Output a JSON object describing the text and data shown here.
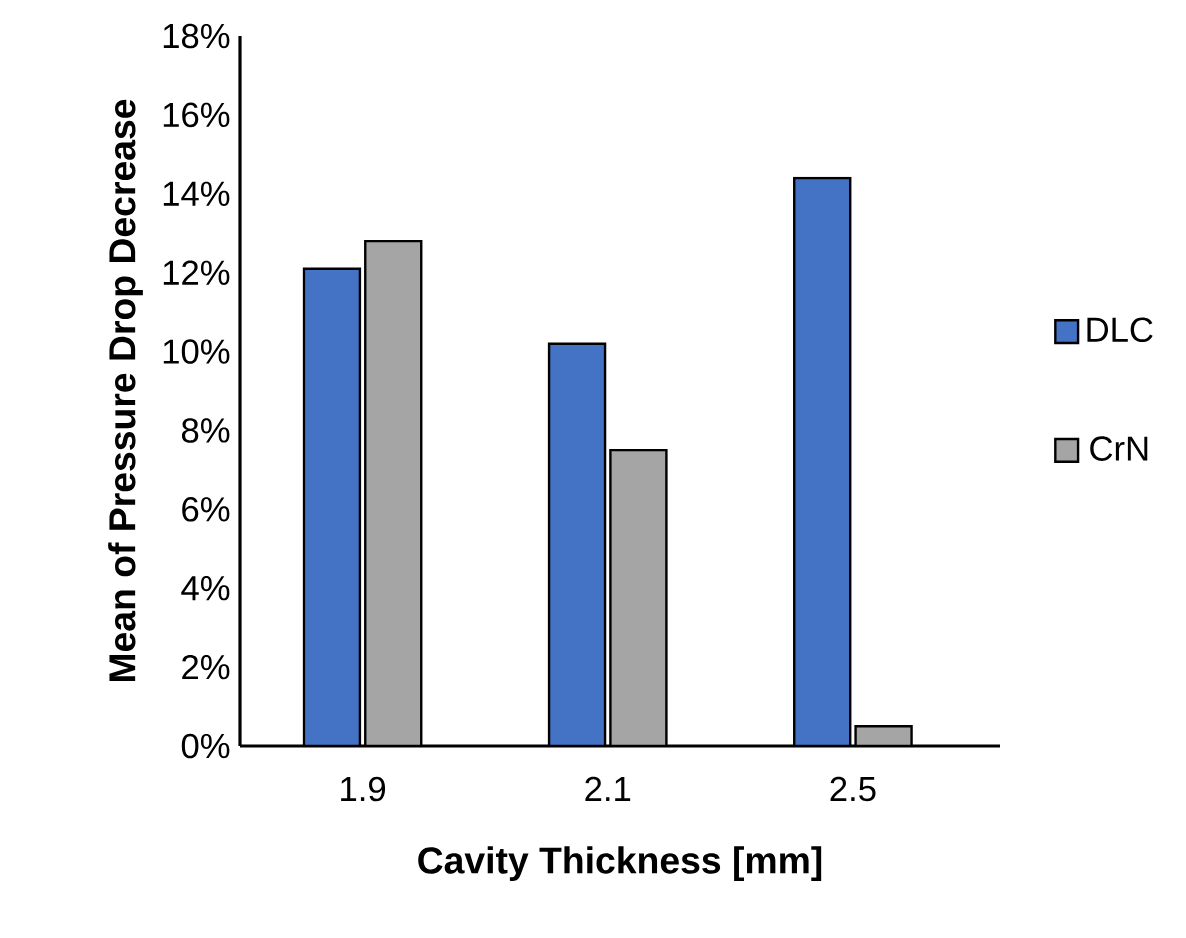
{
  "chart_data": {
    "type": "bar",
    "xlabel": "Cavity Thickness [mm]",
    "ylabel": "Mean of Pressure Drop Decrease",
    "categories": [
      "1.9",
      "2.1",
      "2.5"
    ],
    "series": [
      {
        "name": "DLC",
        "color": "#4472c4",
        "values": [
          12.1,
          10.2,
          14.4
        ]
      },
      {
        "name": "CrN",
        "color": "#a5a5a5",
        "values": [
          12.8,
          7.5,
          0.5
        ]
      }
    ],
    "ylim": [
      0,
      18
    ],
    "yticks": [
      {
        "value": 0,
        "label": "0%"
      },
      {
        "value": 2,
        "label": "2%"
      },
      {
        "value": 4,
        "label": "4%"
      },
      {
        "value": 6,
        "label": "6%"
      },
      {
        "value": 8,
        "label": "8%"
      },
      {
        "value": 10,
        "label": "10%"
      },
      {
        "value": 12,
        "label": "12%"
      },
      {
        "value": 14,
        "label": "14%"
      },
      {
        "value": 16,
        "label": "16%"
      },
      {
        "value": 18,
        "label": "18%"
      }
    ],
    "grid": false,
    "legend": "right"
  }
}
